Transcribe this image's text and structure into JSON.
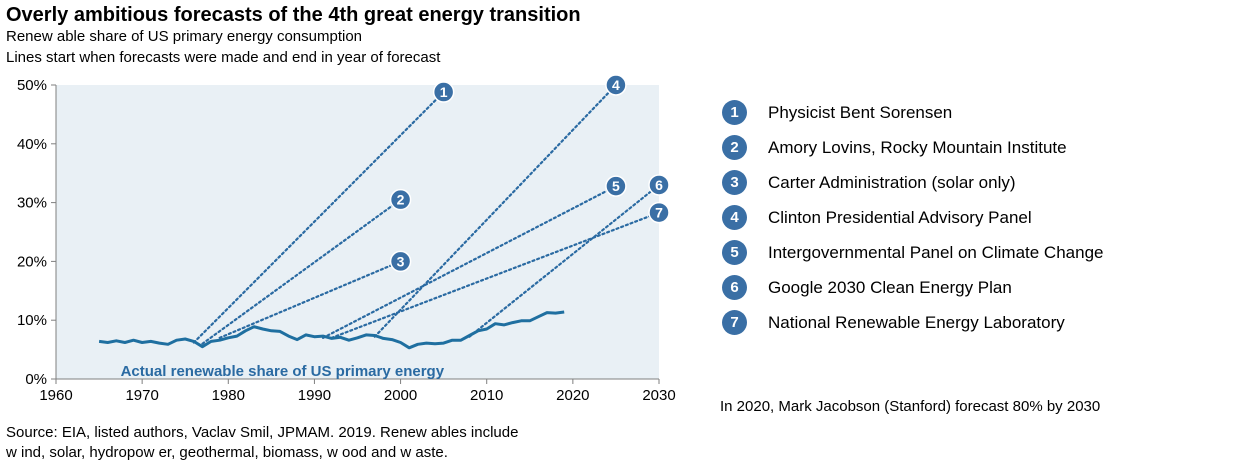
{
  "title": "Overly ambitious forecasts of the 4th great energy transition",
  "subtitle_lines": [
    "Renew able share of US primary energy consumption",
    "Lines start when forecasts were made and end in year of forecast"
  ],
  "legend": [
    {
      "num": "1",
      "label": "Physicist Bent Sorensen"
    },
    {
      "num": "2",
      "label": "Amory Lovins, Rocky Mountain Institute"
    },
    {
      "num": "3",
      "label": "Carter Administration (solar only)"
    },
    {
      "num": "4",
      "label": "Clinton Presidential Advisory Panel"
    },
    {
      "num": "5",
      "label": "Intergovernmental Panel on Climate Change"
    },
    {
      "num": "6",
      "label": "Google 2030 Clean Energy Plan"
    },
    {
      "num": "7",
      "label": "National Renewable Energy Laboratory"
    }
  ],
  "note": "In 2020, Mark Jacobson (Stanford) forecast 80% by 2030",
  "source_lines": [
    "Source: EIA, listed authors, Vaclav Smil, JPMAM. 2019. Renew ables include",
    "w ind, solar, hydropow er, geothermal, biomass, w ood and w aste."
  ],
  "colors": {
    "actual_line": "#1f6fa0",
    "forecast_line": "#2a6aa2",
    "badge": "#3a6fa5",
    "plot_bg": "#e9f0f5",
    "actual_label": "#2a6aa2"
  },
  "chart_data": {
    "type": "line",
    "xlim": [
      1960,
      2030
    ],
    "ylim": [
      0,
      50
    ],
    "x_ticks": [
      "1960",
      "1970",
      "1980",
      "1990",
      "2000",
      "2010",
      "2020",
      "2030"
    ],
    "y_ticks": [
      "0%",
      "10%",
      "20%",
      "30%",
      "40%",
      "50%"
    ],
    "actual_label": "Actual renewable share of US primary energy",
    "actual_series": {
      "x": [
        1965,
        1966,
        1967,
        1968,
        1969,
        1970,
        1971,
        1972,
        1973,
        1974,
        1975,
        1976,
        1977,
        1978,
        1979,
        1980,
        1981,
        1982,
        1983,
        1984,
        1985,
        1986,
        1987,
        1988,
        1989,
        1990,
        1991,
        1992,
        1993,
        1994,
        1995,
        1996,
        1997,
        1998,
        1999,
        2000,
        2001,
        2002,
        2003,
        2004,
        2005,
        2006,
        2007,
        2008,
        2009,
        2010,
        2011,
        2012,
        2013,
        2014,
        2015,
        2016,
        2017,
        2018,
        2019
      ],
      "y": [
        6.4,
        6.2,
        6.5,
        6.2,
        6.6,
        6.2,
        6.4,
        6.1,
        5.9,
        6.6,
        6.8,
        6.4,
        5.5,
        6.4,
        6.6,
        7.0,
        7.3,
        8.2,
        8.9,
        8.5,
        8.2,
        8.1,
        7.3,
        6.7,
        7.5,
        7.2,
        7.3,
        6.9,
        7.1,
        6.6,
        7.0,
        7.5,
        7.4,
        6.9,
        6.7,
        6.2,
        5.3,
        5.9,
        6.1,
        6.0,
        6.1,
        6.6,
        6.6,
        7.4,
        8.2,
        8.5,
        9.4,
        9.2,
        9.6,
        9.9,
        9.9,
        10.6,
        11.3,
        11.2,
        11.4
      ]
    },
    "forecasts": [
      {
        "num": "1",
        "x": [
          1976,
          2005
        ],
        "y": [
          6.2,
          48.8
        ]
      },
      {
        "num": "2",
        "x": [
          1977,
          2000
        ],
        "y": [
          6.0,
          30.5
        ]
      },
      {
        "num": "3",
        "x": [
          1979,
          2000
        ],
        "y": [
          7.0,
          20.0
        ]
      },
      {
        "num": "4",
        "x": [
          1997,
          2025
        ],
        "y": [
          7.2,
          50.0
        ]
      },
      {
        "num": "5",
        "x": [
          1991,
          2025
        ],
        "y": [
          7.0,
          32.8
        ]
      },
      {
        "num": "6",
        "x": [
          2008,
          2030
        ],
        "y": [
          7.2,
          33.0
        ]
      },
      {
        "num": "7",
        "x": [
          1992,
          2030
        ],
        "y": [
          7.0,
          28.3
        ]
      }
    ]
  }
}
